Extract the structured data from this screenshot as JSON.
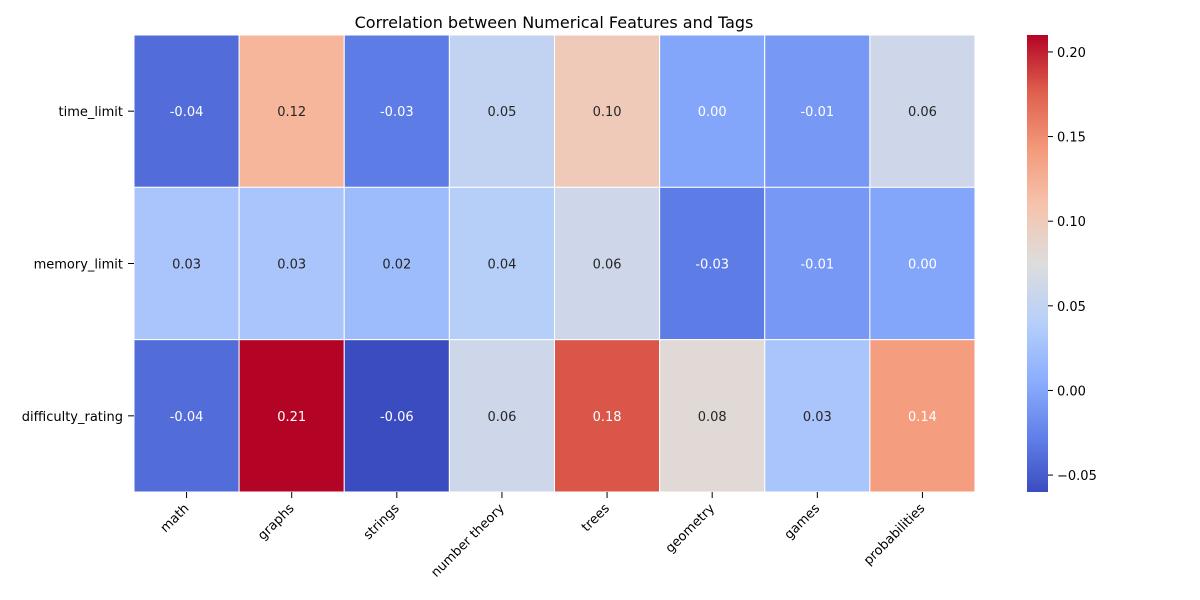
{
  "chart_data": {
    "type": "heatmap",
    "title": "Correlation between Numerical Features and Tags",
    "rows": [
      "time_limit",
      "memory_limit",
      "difficulty_rating"
    ],
    "columns": [
      "math",
      "graphs",
      "strings",
      "number theory",
      "trees",
      "geometry",
      "games",
      "probabilities"
    ],
    "values": [
      [
        -0.04,
        0.12,
        -0.03,
        0.05,
        0.1,
        0.0,
        -0.01,
        0.06
      ],
      [
        0.03,
        0.03,
        0.02,
        0.04,
        0.06,
        -0.03,
        -0.01,
        0.0
      ],
      [
        -0.04,
        0.21,
        -0.06,
        0.06,
        0.18,
        0.08,
        0.03,
        0.14
      ]
    ],
    "value_labels": [
      [
        "-0.04",
        "0.12",
        "-0.03",
        "0.05",
        "0.10",
        "0.00",
        "-0.01",
        "0.06"
      ],
      [
        "0.03",
        "0.03",
        "0.02",
        "0.04",
        "0.06",
        "-0.03",
        "-0.01",
        "0.00"
      ],
      [
        "-0.04",
        "0.21",
        "-0.06",
        "0.06",
        "0.18",
        "0.08",
        "0.03",
        "0.14"
      ]
    ],
    "colormap": "coolwarm",
    "vmin": -0.06,
    "vmax": 0.21,
    "colorbar_ticks": [
      -0.05,
      0.0,
      0.05,
      0.1,
      0.15,
      0.2
    ],
    "colorbar_tick_labels": [
      "−0.05",
      "0.00",
      "0.05",
      "0.10",
      "0.15",
      "0.20"
    ],
    "xlabel": "",
    "ylabel": "",
    "grid": false
  }
}
